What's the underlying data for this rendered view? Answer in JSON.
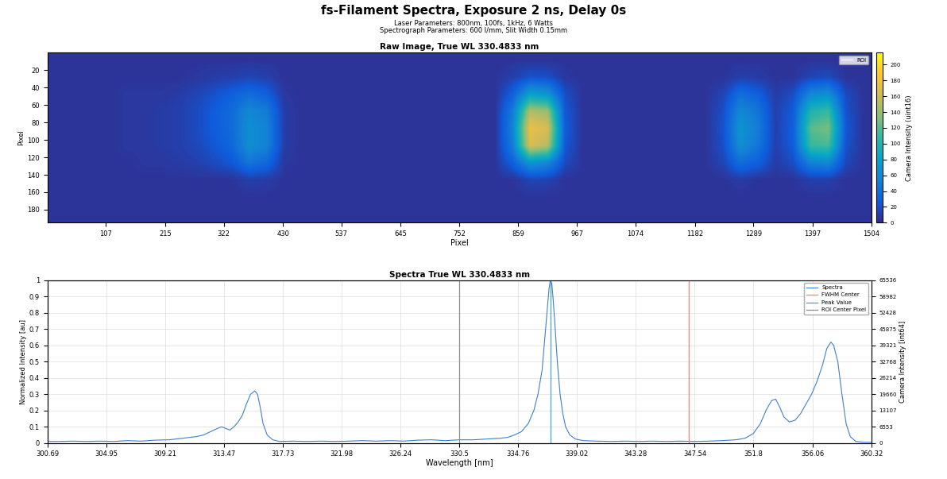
{
  "title": "fs-Filament Spectra, Exposure 2 ns, Delay 0s",
  "subtitle": [
    "Laser Parameters: 800nm, 100fs, 1kHz, 6 Watts",
    "Spectrograph Parameters: 600 l/mm, Slit Width 0.15mm"
  ],
  "chart_data": [
    {
      "type": "heatmap",
      "title": "Raw Image, True WL 330.4833 nm",
      "x_label": "Pixel",
      "y_label": "Pixel",
      "xlim": [
        0,
        1504
      ],
      "xticks": [
        107,
        215,
        322,
        430,
        537,
        645,
        752,
        859,
        967,
        1074,
        1182,
        1289,
        1397,
        1504
      ],
      "ylim": [
        195,
        0
      ],
      "yticks": [
        20,
        40,
        60,
        80,
        100,
        120,
        140,
        160,
        180
      ],
      "colorbar": {
        "label": "Camera Intensity (uint16)",
        "range": [
          0,
          215
        ],
        "ticks": [
          0,
          20,
          40,
          60,
          80,
          100,
          120,
          140,
          160,
          180,
          200
        ]
      },
      "legend": "upper right",
      "series": [
        {
          "name": "ROI",
          "color": "#ffffff",
          "type": "line"
        }
      ],
      "cells": [
        [
          6,
          6,
          6,
          6,
          6,
          6,
          6,
          6,
          6,
          6,
          6,
          6,
          6,
          6,
          6,
          6,
          6,
          6,
          6,
          6,
          6,
          6,
          6,
          6,
          6,
          6,
          6,
          6,
          6,
          6,
          6,
          6,
          6,
          6,
          6,
          6,
          6,
          6,
          6,
          6,
          6,
          6,
          6,
          6,
          6,
          6,
          6
        ],
        [
          6,
          6,
          6,
          6,
          6,
          6,
          6,
          6,
          8,
          10,
          12,
          15,
          12,
          6,
          6,
          6,
          6,
          6,
          6,
          6,
          6,
          6,
          6,
          6,
          6,
          6,
          12,
          22,
          20,
          8,
          6,
          6,
          6,
          6,
          6,
          6,
          6,
          6,
          6,
          12,
          10,
          6,
          6,
          15,
          18,
          6,
          6
        ],
        [
          6,
          6,
          6,
          6,
          8,
          8,
          8,
          10,
          15,
          22,
          30,
          40,
          30,
          8,
          6,
          6,
          6,
          6,
          6,
          6,
          6,
          6,
          6,
          6,
          6,
          6,
          30,
          80,
          70,
          20,
          6,
          6,
          6,
          6,
          6,
          6,
          6,
          6,
          15,
          40,
          30,
          10,
          20,
          60,
          65,
          18,
          6
        ],
        [
          6,
          6,
          6,
          6,
          8,
          8,
          10,
          12,
          18,
          28,
          38,
          60,
          50,
          10,
          6,
          6,
          6,
          6,
          6,
          6,
          6,
          6,
          6,
          6,
          6,
          6,
          50,
          150,
          140,
          25,
          6,
          6,
          6,
          6,
          6,
          6,
          6,
          6,
          20,
          60,
          45,
          12,
          28,
          100,
          110,
          22,
          6
        ],
        [
          6,
          6,
          6,
          6,
          8,
          8,
          10,
          12,
          18,
          28,
          38,
          65,
          55,
          10,
          6,
          6,
          6,
          6,
          6,
          6,
          6,
          6,
          6,
          6,
          6,
          6,
          55,
          175,
          165,
          28,
          6,
          6,
          6,
          6,
          6,
          6,
          6,
          6,
          22,
          70,
          50,
          12,
          30,
          120,
          130,
          25,
          6
        ],
        [
          6,
          6,
          6,
          6,
          8,
          8,
          10,
          12,
          16,
          25,
          35,
          65,
          55,
          10,
          6,
          6,
          6,
          6,
          6,
          6,
          6,
          6,
          6,
          6,
          6,
          6,
          50,
          165,
          150,
          25,
          6,
          6,
          6,
          6,
          6,
          6,
          6,
          6,
          20,
          65,
          45,
          12,
          28,
          110,
          115,
          22,
          6
        ],
        [
          6,
          6,
          6,
          6,
          6,
          8,
          8,
          10,
          12,
          18,
          25,
          45,
          35,
          8,
          6,
          6,
          6,
          6,
          6,
          6,
          6,
          6,
          6,
          6,
          6,
          6,
          30,
          70,
          60,
          18,
          6,
          6,
          6,
          6,
          6,
          6,
          6,
          6,
          15,
          40,
          30,
          10,
          20,
          55,
          60,
          16,
          6
        ],
        [
          6,
          6,
          6,
          6,
          6,
          6,
          6,
          6,
          6,
          6,
          6,
          12,
          10,
          6,
          6,
          6,
          6,
          6,
          6,
          6,
          6,
          6,
          6,
          6,
          6,
          6,
          6,
          15,
          14,
          6,
          6,
          6,
          6,
          6,
          6,
          6,
          6,
          6,
          6,
          10,
          6,
          6,
          6,
          12,
          12,
          6,
          6
        ],
        [
          6,
          6,
          6,
          6,
          6,
          6,
          6,
          6,
          6,
          6,
          6,
          6,
          6,
          6,
          6,
          6,
          6,
          6,
          6,
          6,
          6,
          6,
          6,
          6,
          6,
          6,
          6,
          6,
          6,
          6,
          6,
          6,
          6,
          6,
          6,
          6,
          6,
          6,
          6,
          6,
          6,
          6,
          6,
          6,
          6,
          6,
          6
        ],
        [
          6,
          6,
          6,
          6,
          6,
          6,
          6,
          6,
          6,
          6,
          6,
          6,
          6,
          6,
          6,
          6,
          6,
          6,
          6,
          6,
          6,
          6,
          6,
          6,
          6,
          6,
          6,
          6,
          6,
          6,
          6,
          6,
          6,
          6,
          6,
          6,
          6,
          6,
          6,
          6,
          6,
          6,
          6,
          6,
          6,
          6,
          6
        ]
      ]
    },
    {
      "type": "line",
      "title": "Spectra True WL 330.4833 nm",
      "x_label": "Wavelength [nm]",
      "y_label": "Normalized Intensity [au]",
      "y2_label": "Camera Intensity [int64]",
      "xlim": [
        300.69,
        360.32
      ],
      "xticks": [
        300.69,
        304.95,
        309.21,
        313.47,
        317.73,
        321.98,
        326.24,
        330.5,
        334.76,
        339.02,
        343.28,
        347.54,
        351.8,
        356.06,
        360.32
      ],
      "ylim": [
        0,
        1
      ],
      "yticks": [
        0,
        0.1,
        0.2,
        0.3,
        0.4,
        0.5,
        0.6,
        0.7,
        0.8,
        0.9,
        1
      ],
      "y2lim": [
        0,
        65536
      ],
      "y2ticks": [
        0,
        6553,
        13107,
        19660,
        26214,
        32768,
        39321,
        45875,
        52428,
        58982,
        65536
      ],
      "grid": true,
      "legend": "upper right",
      "x": [
        300.69,
        301.5,
        302.5,
        303.5,
        304.5,
        305.5,
        306.5,
        307.5,
        308.5,
        309.5,
        310.5,
        311.5,
        312.0,
        312.5,
        313.0,
        313.3,
        313.6,
        313.9,
        314.2,
        314.5,
        314.8,
        315.1,
        315.4,
        315.7,
        315.9,
        316.1,
        316.3,
        316.6,
        317.0,
        317.5,
        318.5,
        319.5,
        320.5,
        321.5,
        322.5,
        323.5,
        324.5,
        325.5,
        326.5,
        327.5,
        328.5,
        329.5,
        330.5,
        331.5,
        332.5,
        333.5,
        334.0,
        334.5,
        335.0,
        335.5,
        335.9,
        336.2,
        336.5,
        336.7,
        336.9,
        337.0,
        337.1,
        337.2,
        337.3,
        337.45,
        337.6,
        337.8,
        338.0,
        338.2,
        338.5,
        338.9,
        339.5,
        340.5,
        341.5,
        342.5,
        343.5,
        344.5,
        345.5,
        346.5,
        347.5,
        348.5,
        349.5,
        350.5,
        351.2,
        351.8,
        352.3,
        352.7,
        353.1,
        353.4,
        353.7,
        354.0,
        354.4,
        354.8,
        355.2,
        355.6,
        356.0,
        356.4,
        356.8,
        357.1,
        357.4,
        357.6,
        357.9,
        358.2,
        358.5,
        358.8,
        359.2,
        359.8,
        360.32
      ],
      "series": [
        {
          "name": "Spectra",
          "color": "#3f7fcf",
          "type": "line",
          "values": [
            0.01,
            0.01,
            0.012,
            0.01,
            0.012,
            0.01,
            0.015,
            0.012,
            0.018,
            0.02,
            0.03,
            0.04,
            0.05,
            0.07,
            0.09,
            0.1,
            0.09,
            0.08,
            0.1,
            0.13,
            0.17,
            0.24,
            0.3,
            0.32,
            0.3,
            0.22,
            0.12,
            0.05,
            0.02,
            0.01,
            0.012,
            0.01,
            0.012,
            0.01,
            0.012,
            0.015,
            0.012,
            0.015,
            0.012,
            0.018,
            0.02,
            0.015,
            0.02,
            0.02,
            0.025,
            0.03,
            0.035,
            0.05,
            0.07,
            0.12,
            0.2,
            0.3,
            0.45,
            0.65,
            0.85,
            0.95,
            1,
            0.98,
            0.88,
            0.7,
            0.5,
            0.3,
            0.18,
            0.1,
            0.05,
            0.025,
            0.015,
            0.012,
            0.01,
            0.012,
            0.01,
            0.012,
            0.01,
            0.012,
            0.01,
            0.012,
            0.015,
            0.02,
            0.03,
            0.06,
            0.12,
            0.2,
            0.26,
            0.27,
            0.22,
            0.16,
            0.13,
            0.14,
            0.18,
            0.24,
            0.3,
            0.38,
            0.48,
            0.58,
            0.62,
            0.6,
            0.5,
            0.3,
            0.12,
            0.04,
            0.01,
            0.005,
            0.005
          ]
        },
        {
          "name": "FWHM Center",
          "color": "#ff7f7f",
          "type": "vline",
          "x": 347.1
        },
        {
          "name": "Peak Value",
          "color": "#4d9be6",
          "type": "vline",
          "x": 337.1
        },
        {
          "name": "ROI Center Pixel",
          "color": "#8c8c8c",
          "type": "vline",
          "x": 330.5
        }
      ]
    }
  ]
}
